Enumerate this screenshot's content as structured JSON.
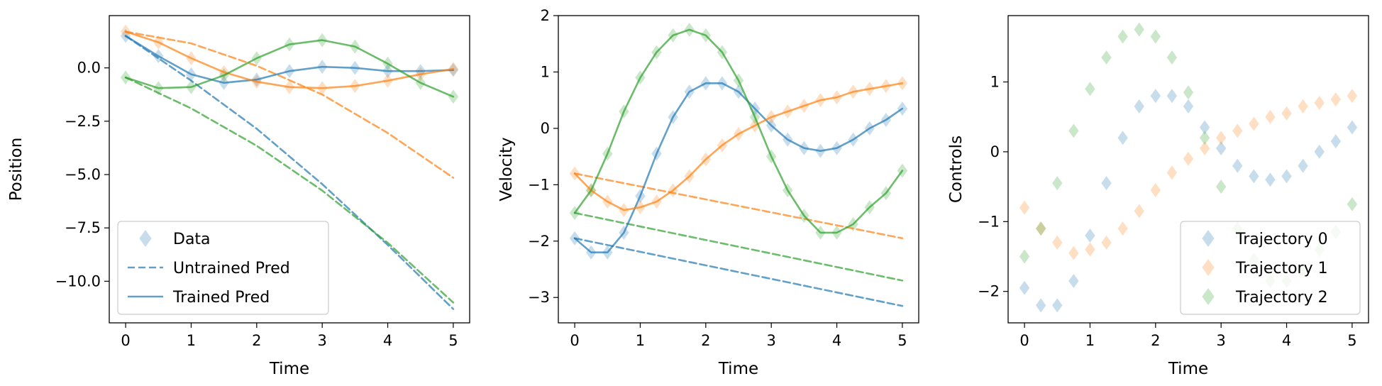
{
  "colors": {
    "traj0": "#1f77b4",
    "traj1": "#ff7f0e",
    "traj2": "#2ca02c"
  },
  "icons": {
    "data_marker": "diamond-icon"
  },
  "chart_data": [
    {
      "type": "line",
      "xlabel": "Time",
      "ylabel": "Position",
      "xlim": [
        -0.25,
        5.25
      ],
      "ylim": [
        -11.95,
        2.45
      ],
      "xticks": [
        0,
        1,
        2,
        3,
        4,
        5
      ],
      "yticks": [
        0.0,
        -2.5,
        -5.0,
        -7.5,
        -10.0
      ],
      "ytick_labels": [
        "0.0",
        "−2.5",
        "−5.0",
        "−7.5",
        "−10.0"
      ],
      "legend": {
        "location": "lower-left",
        "entries": [
          "Data",
          "Untrained Pred",
          "Trained Pred"
        ]
      },
      "series": [
        {
          "group": "traj0",
          "kind": "data",
          "x": [
            0,
            0.5,
            1,
            1.5,
            2,
            2.5,
            3,
            3.5,
            4,
            4.5,
            5
          ],
          "y": [
            1.5,
            0.55,
            -0.3,
            -0.7,
            -0.55,
            -0.15,
            0.05,
            0.0,
            -0.15,
            -0.15,
            -0.1
          ]
        },
        {
          "group": "traj1",
          "kind": "data",
          "x": [
            0,
            0.5,
            1,
            1.5,
            2,
            2.5,
            3,
            3.5,
            4,
            4.5,
            5
          ],
          "y": [
            1.7,
            1.2,
            0.45,
            -0.2,
            -0.65,
            -0.9,
            -0.95,
            -0.85,
            -0.6,
            -0.3,
            -0.05
          ]
        },
        {
          "group": "traj2",
          "kind": "data",
          "x": [
            0,
            0.5,
            1,
            1.5,
            2,
            2.5,
            3,
            3.5,
            4,
            4.5,
            5
          ],
          "y": [
            -0.45,
            -0.95,
            -0.9,
            -0.35,
            0.45,
            1.1,
            1.3,
            1.0,
            0.2,
            -0.7,
            -1.35
          ]
        },
        {
          "group": "traj0",
          "kind": "untrained",
          "x": [
            0,
            1,
            2,
            3,
            4,
            5
          ],
          "y": [
            1.5,
            -0.6,
            -2.85,
            -5.45,
            -8.3,
            -11.3
          ]
        },
        {
          "group": "traj1",
          "kind": "untrained",
          "x": [
            0,
            1,
            2,
            3,
            4,
            5
          ],
          "y": [
            1.7,
            1.15,
            0.1,
            -1.25,
            -3.05,
            -5.15
          ]
        },
        {
          "group": "traj2",
          "kind": "untrained",
          "x": [
            0,
            1,
            2,
            3,
            4,
            5
          ],
          "y": [
            -0.45,
            -1.9,
            -3.65,
            -5.75,
            -8.2,
            -11.0
          ]
        },
        {
          "group": "traj0",
          "kind": "trained",
          "x": [
            0,
            0.5,
            1,
            1.5,
            2,
            2.5,
            3,
            3.5,
            4,
            4.5,
            5
          ],
          "y": [
            1.5,
            0.55,
            -0.3,
            -0.7,
            -0.55,
            -0.15,
            0.05,
            0.0,
            -0.15,
            -0.15,
            -0.1
          ]
        },
        {
          "group": "traj1",
          "kind": "trained",
          "x": [
            0,
            0.5,
            1,
            1.5,
            2,
            2.5,
            3,
            3.5,
            4,
            4.5,
            5
          ],
          "y": [
            1.7,
            1.2,
            0.45,
            -0.2,
            -0.65,
            -0.9,
            -0.95,
            -0.85,
            -0.6,
            -0.3,
            -0.05
          ]
        },
        {
          "group": "traj2",
          "kind": "trained",
          "x": [
            0,
            0.5,
            1,
            1.5,
            2,
            2.5,
            3,
            3.5,
            4,
            4.5,
            5
          ],
          "y": [
            -0.45,
            -0.95,
            -0.9,
            -0.35,
            0.45,
            1.1,
            1.3,
            1.0,
            0.2,
            -0.7,
            -1.35
          ]
        }
      ]
    },
    {
      "type": "line",
      "xlabel": "Time",
      "ylabel": "Velocity",
      "xlim": [
        -0.25,
        5.25
      ],
      "ylim": [
        -3.45,
        2.0
      ],
      "xticks": [
        0,
        1,
        2,
        3,
        4,
        5
      ],
      "yticks": [
        2,
        1,
        0,
        -1,
        -2,
        -3
      ],
      "ytick_labels": [
        "2",
        "1",
        "0",
        "−1",
        "−2",
        "−3"
      ],
      "series": [
        {
          "group": "traj0",
          "kind": "data",
          "x": [
            0,
            0.25,
            0.5,
            0.75,
            1,
            1.25,
            1.5,
            1.75,
            2,
            2.25,
            2.5,
            2.75,
            3,
            3.25,
            3.5,
            3.75,
            4,
            4.25,
            4.5,
            4.75,
            5
          ],
          "y": [
            -1.95,
            -2.2,
            -2.2,
            -1.85,
            -1.2,
            -0.45,
            0.2,
            0.65,
            0.8,
            0.8,
            0.65,
            0.35,
            0.05,
            -0.2,
            -0.35,
            -0.4,
            -0.35,
            -0.2,
            0.0,
            0.15,
            0.35
          ]
        },
        {
          "group": "traj1",
          "kind": "data",
          "x": [
            0,
            0.25,
            0.5,
            0.75,
            1,
            1.25,
            1.5,
            1.75,
            2,
            2.25,
            2.5,
            2.75,
            3,
            3.25,
            3.5,
            3.75,
            4,
            4.25,
            4.5,
            4.75,
            5
          ],
          "y": [
            -0.8,
            -1.1,
            -1.3,
            -1.45,
            -1.4,
            -1.3,
            -1.1,
            -0.85,
            -0.55,
            -0.3,
            -0.1,
            0.05,
            0.2,
            0.3,
            0.4,
            0.5,
            0.55,
            0.65,
            0.7,
            0.75,
            0.8
          ]
        },
        {
          "group": "traj2",
          "kind": "data",
          "x": [
            0,
            0.25,
            0.5,
            0.75,
            1,
            1.25,
            1.5,
            1.75,
            2,
            2.25,
            2.5,
            2.75,
            3,
            3.25,
            3.5,
            3.75,
            4,
            4.25,
            4.5,
            4.75,
            5
          ],
          "y": [
            -1.5,
            -1.1,
            -0.45,
            0.3,
            0.9,
            1.35,
            1.65,
            1.75,
            1.65,
            1.35,
            0.85,
            0.2,
            -0.5,
            -1.1,
            -1.55,
            -1.85,
            -1.85,
            -1.7,
            -1.4,
            -1.15,
            -0.75
          ]
        },
        {
          "group": "traj0",
          "kind": "untrained",
          "x": [
            0,
            5
          ],
          "y": [
            -1.95,
            -3.15
          ]
        },
        {
          "group": "traj1",
          "kind": "untrained",
          "x": [
            0,
            5
          ],
          "y": [
            -0.8,
            -1.95
          ]
        },
        {
          "group": "traj2",
          "kind": "untrained",
          "x": [
            0,
            5
          ],
          "y": [
            -1.5,
            -2.7
          ]
        },
        {
          "group": "traj0",
          "kind": "trained",
          "x": [
            0,
            0.25,
            0.5,
            0.75,
            1,
            1.25,
            1.5,
            1.75,
            2,
            2.25,
            2.5,
            2.75,
            3,
            3.25,
            3.5,
            3.75,
            4,
            4.25,
            4.5,
            4.75,
            5
          ],
          "y": [
            -1.95,
            -2.2,
            -2.2,
            -1.85,
            -1.2,
            -0.45,
            0.2,
            0.65,
            0.8,
            0.8,
            0.65,
            0.35,
            0.05,
            -0.2,
            -0.35,
            -0.4,
            -0.35,
            -0.2,
            0.0,
            0.15,
            0.35
          ]
        },
        {
          "group": "traj1",
          "kind": "trained",
          "x": [
            0,
            0.25,
            0.5,
            0.75,
            1,
            1.25,
            1.5,
            1.75,
            2,
            2.25,
            2.5,
            2.75,
            3,
            3.25,
            3.5,
            3.75,
            4,
            4.25,
            4.5,
            4.75,
            5
          ],
          "y": [
            -0.8,
            -1.1,
            -1.3,
            -1.45,
            -1.4,
            -1.3,
            -1.1,
            -0.85,
            -0.55,
            -0.3,
            -0.1,
            0.05,
            0.2,
            0.3,
            0.4,
            0.5,
            0.55,
            0.65,
            0.7,
            0.75,
            0.8
          ]
        },
        {
          "group": "traj2",
          "kind": "trained",
          "x": [
            0,
            0.25,
            0.5,
            0.75,
            1,
            1.25,
            1.5,
            1.75,
            2,
            2.25,
            2.5,
            2.75,
            3,
            3.25,
            3.5,
            3.75,
            4,
            4.25,
            4.5,
            4.75,
            5
          ],
          "y": [
            -1.5,
            -1.1,
            -0.45,
            0.3,
            0.9,
            1.35,
            1.65,
            1.75,
            1.65,
            1.35,
            0.85,
            0.2,
            -0.5,
            -1.1,
            -1.55,
            -1.85,
            -1.85,
            -1.7,
            -1.4,
            -1.15,
            -0.75
          ]
        }
      ]
    },
    {
      "type": "scatter",
      "xlabel": "Time",
      "ylabel": "Controls",
      "xlim": [
        -0.25,
        5.25
      ],
      "ylim": [
        -2.45,
        1.95
      ],
      "xticks": [
        0,
        1,
        2,
        3,
        4,
        5
      ],
      "yticks": [
        1,
        0,
        -1,
        -2
      ],
      "ytick_labels": [
        "1",
        "0",
        "−1",
        "−2"
      ],
      "legend": {
        "location": "lower-right",
        "entries": [
          "Trajectory 0",
          "Trajectory 1",
          "Trajectory 2"
        ]
      },
      "series": [
        {
          "group": "traj0",
          "kind": "data",
          "name": "Trajectory 0",
          "x": [
            0,
            0.25,
            0.5,
            0.75,
            1,
            1.25,
            1.5,
            1.75,
            2,
            2.25,
            2.5,
            2.75,
            3,
            3.25,
            3.5,
            3.75,
            4,
            4.25,
            4.5,
            4.75,
            5
          ],
          "y": [
            -1.95,
            -2.2,
            -2.2,
            -1.85,
            -1.2,
            -0.45,
            0.2,
            0.65,
            0.8,
            0.8,
            0.65,
            0.35,
            0.05,
            -0.2,
            -0.35,
            -0.4,
            -0.35,
            -0.2,
            0.0,
            0.15,
            0.35
          ]
        },
        {
          "group": "traj1",
          "kind": "data",
          "name": "Trajectory 1",
          "x": [
            0,
            0.25,
            0.5,
            0.75,
            1,
            1.25,
            1.5,
            1.75,
            2,
            2.25,
            2.5,
            2.75,
            3,
            3.25,
            3.5,
            3.75,
            4,
            4.25,
            4.5,
            4.75,
            5
          ],
          "y": [
            -0.8,
            -1.1,
            -1.3,
            -1.45,
            -1.4,
            -1.3,
            -1.1,
            -0.85,
            -0.55,
            -0.3,
            -0.1,
            0.05,
            0.2,
            0.3,
            0.4,
            0.5,
            0.55,
            0.65,
            0.7,
            0.75,
            0.8
          ]
        },
        {
          "group": "traj2",
          "kind": "data",
          "name": "Trajectory 2",
          "x": [
            0,
            0.25,
            0.5,
            0.75,
            1,
            1.25,
            1.5,
            1.75,
            2,
            2.25,
            2.5,
            2.75,
            3,
            3.25,
            3.5,
            3.75,
            4,
            4.25,
            4.5,
            4.75,
            5
          ],
          "y": [
            -1.5,
            -1.1,
            -0.45,
            0.3,
            0.9,
            1.35,
            1.65,
            1.75,
            1.65,
            1.35,
            0.85,
            0.2,
            -0.5,
            -1.1,
            -1.55,
            -1.85,
            -1.85,
            -1.7,
            -1.4,
            -1.15,
            -0.75
          ]
        }
      ]
    }
  ]
}
